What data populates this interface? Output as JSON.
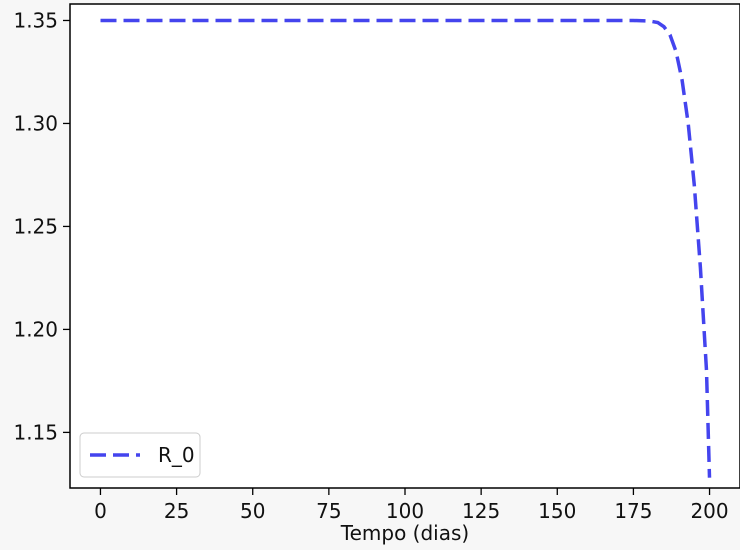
{
  "chart_data": {
    "type": "line",
    "title": "",
    "xlabel": "Tempo (dias)",
    "ylabel": "",
    "xlim": [
      -10,
      210
    ],
    "ylim": [
      1.123,
      1.358
    ],
    "x_ticks": [
      0,
      25,
      50,
      75,
      100,
      125,
      150,
      175,
      200
    ],
    "x_tick_labels": [
      "0",
      "25",
      "50",
      "75",
      "100",
      "125",
      "150",
      "175",
      "200"
    ],
    "y_ticks": [
      1.15,
      1.2,
      1.25,
      1.3,
      1.35
    ],
    "y_tick_labels": [
      "1.15",
      "1.20",
      "1.25",
      "1.30",
      "1.35"
    ],
    "grid": false,
    "legend_position": "lower-left",
    "series": [
      {
        "name": "R_0",
        "color": "#4444ee",
        "line_style": "dashed",
        "x": [
          0,
          25,
          50,
          75,
          100,
          125,
          150,
          175,
          180,
          183,
          185,
          187,
          189,
          191,
          193,
          195,
          197,
          199,
          200
        ],
        "y": [
          1.35,
          1.35,
          1.35,
          1.35,
          1.35,
          1.35,
          1.35,
          1.35,
          1.3498,
          1.349,
          1.347,
          1.343,
          1.335,
          1.321,
          1.3,
          1.27,
          1.23,
          1.18,
          1.128
        ]
      }
    ]
  }
}
